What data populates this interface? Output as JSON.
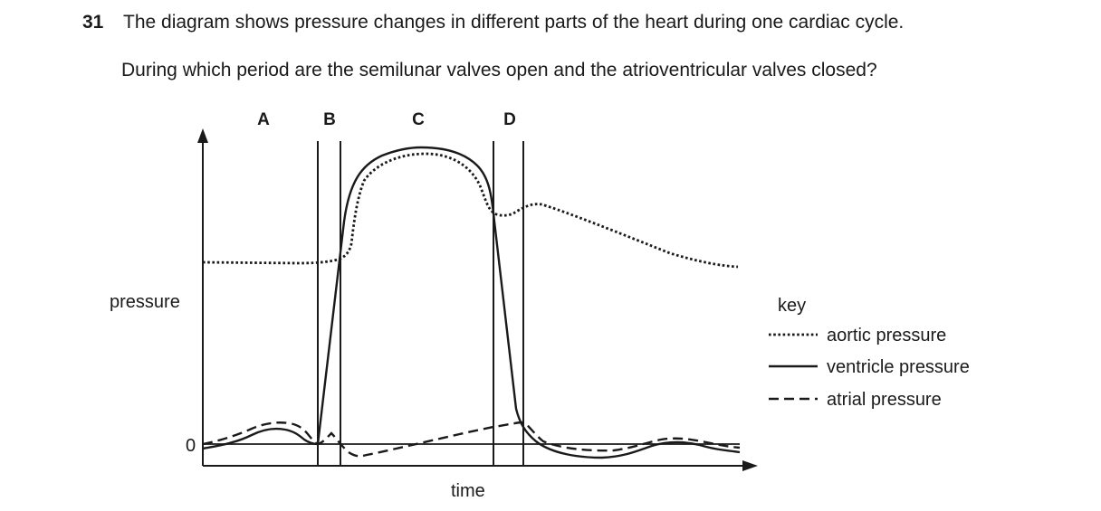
{
  "question": {
    "number": "31",
    "text": "The diagram shows pressure changes in different parts of the heart during one cardiac cycle.",
    "prompt": "During which period are the semilunar valves open and the atrioventricular valves closed?"
  },
  "diagram": {
    "period_labels": [
      "A",
      "B",
      "C",
      "D"
    ],
    "y_axis_label": "pressure",
    "x_axis_label": "time",
    "zero_label": "0",
    "key": {
      "title": "key",
      "entries": [
        {
          "label": "aortic pressure",
          "line_style": "dotted"
        },
        {
          "label": "ventricle pressure",
          "line_style": "solid"
        },
        {
          "label": "atrial pressure",
          "line_style": "dashed"
        }
      ]
    }
  }
}
